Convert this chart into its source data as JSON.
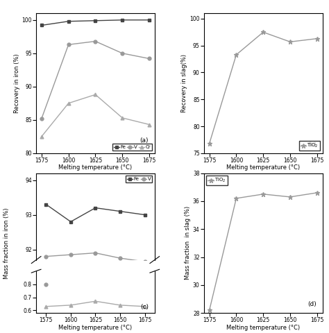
{
  "temps": [
    1575,
    1600,
    1625,
    1650,
    1675
  ],
  "panel_a": {
    "Fe": [
      99.2,
      99.8,
      99.9,
      100.0,
      100.0
    ],
    "V": [
      85.2,
      96.3,
      96.8,
      95.0,
      94.2
    ],
    "Cr": [
      82.5,
      87.5,
      88.8,
      85.3,
      84.3
    ],
    "ylabel": "Recovery in iron (%)",
    "ylim": [
      80,
      101
    ],
    "yticks": [
      80,
      85,
      90,
      95,
      100
    ],
    "label": "(a)"
  },
  "panel_b": {
    "TiO2": [
      76.8,
      93.3,
      97.5,
      95.7,
      96.3
    ],
    "ylabel": "Recovery in slag(%)",
    "ylim": [
      75,
      101
    ],
    "yticks": [
      75,
      80,
      85,
      90,
      95,
      100
    ],
    "label": "(b)"
  },
  "panel_c": {
    "Fe": [
      93.3,
      92.8,
      93.2,
      93.1,
      93.0
    ],
    "V": [
      91.8,
      91.85,
      91.9,
      91.75,
      91.65
    ],
    "Cr": [
      0.63,
      0.64,
      0.67,
      0.64,
      0.63
    ],
    "V_first": 0.8,
    "ylabel": "Mass fraction in iron (%)",
    "label": "(c)"
  },
  "panel_d": {
    "TiO2": [
      28.2,
      36.2,
      36.5,
      36.3,
      36.6
    ],
    "ylabel": "Mass fraction  in slag (%)",
    "ylim": [
      28,
      38
    ],
    "yticks": [
      28,
      30,
      32,
      34,
      36,
      38
    ],
    "label": "(d)"
  },
  "xlabel": "Melting temperature (°C)",
  "color_fe": "#444444",
  "color_v": "#999999",
  "color_cr": "#aaaaaa",
  "color_tio2": "#999999",
  "xticks": [
    1575,
    1600,
    1625,
    1650,
    1675
  ]
}
